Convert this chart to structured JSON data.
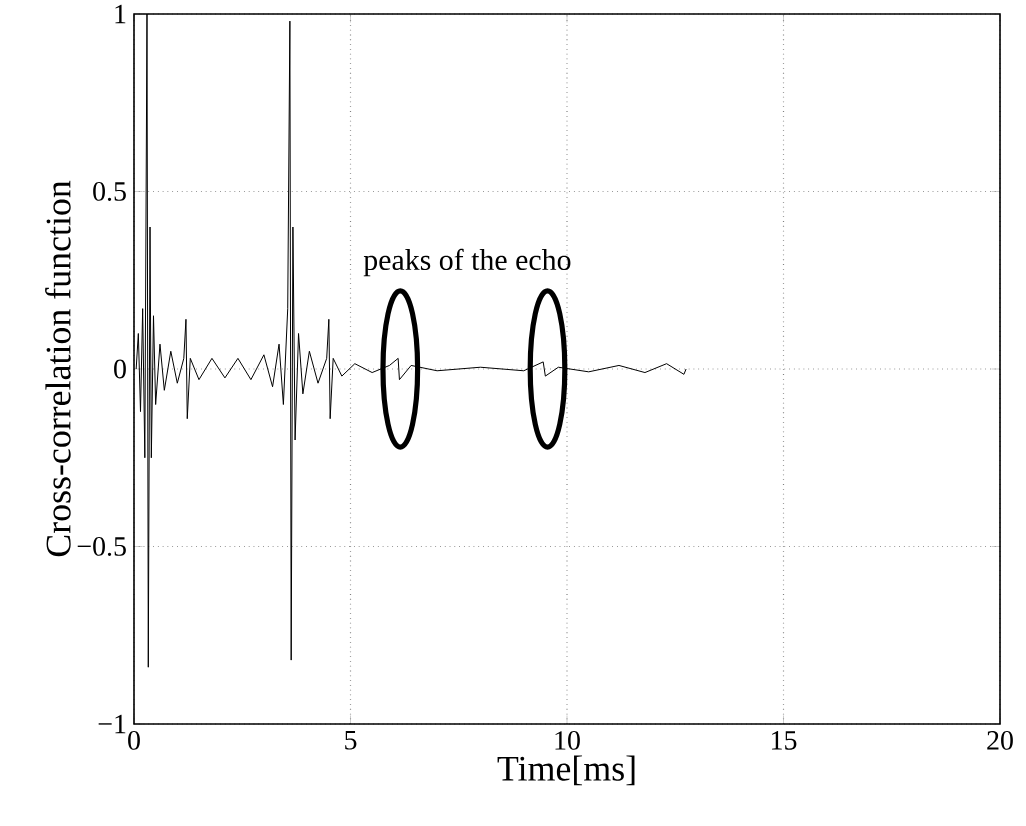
{
  "chart_data": {
    "type": "line",
    "xlabel": "Time[ms]",
    "ylabel": "Cross-correlation function",
    "x": [
      0.05,
      0.1,
      0.15,
      0.2,
      0.25,
      0.3,
      0.33,
      0.37,
      0.4,
      0.45,
      0.5,
      0.6,
      0.7,
      0.85,
      1.0,
      1.15,
      1.2,
      1.23,
      1.3,
      1.5,
      1.8,
      2.1,
      2.4,
      2.7,
      3.0,
      3.2,
      3.35,
      3.45,
      3.55,
      3.6,
      3.63,
      3.67,
      3.72,
      3.8,
      3.9,
      4.05,
      4.25,
      4.45,
      4.5,
      4.53,
      4.6,
      4.8,
      5.1,
      5.5,
      5.9,
      6.1,
      6.13,
      6.4,
      7.0,
      8.0,
      9.0,
      9.45,
      9.5,
      9.8,
      10.5,
      11.2,
      11.8,
      12.3,
      12.7,
      12.75
    ],
    "series": [
      {
        "color": "#000000",
        "values": [
          0,
          0.1,
          -0.12,
          0.17,
          -0.25,
          1.0,
          -0.84,
          0.4,
          -0.25,
          0.15,
          -0.1,
          0.07,
          -0.06,
          0.05,
          -0.04,
          0.03,
          0.14,
          -0.14,
          0.03,
          -0.03,
          0.03,
          -0.025,
          0.03,
          -0.03,
          0.04,
          -0.05,
          0.07,
          -0.1,
          0.17,
          0.98,
          -0.82,
          0.4,
          -0.2,
          0.1,
          -0.07,
          0.05,
          -0.04,
          0.03,
          0.14,
          -0.14,
          0.03,
          -0.02,
          0.015,
          -0.01,
          0.01,
          0.03,
          -0.03,
          0.01,
          -0.005,
          0.005,
          -0.005,
          0.02,
          -0.02,
          0.005,
          -0.008,
          0.01,
          -0.01,
          0.015,
          -0.015,
          0
        ]
      }
    ],
    "xlim": [
      0,
      20
    ],
    "ylim": [
      -1,
      1
    ],
    "xticks": [
      0,
      5,
      10,
      15,
      20
    ],
    "yticks": [
      {
        "value": -1,
        "label": "−1"
      },
      {
        "value": -0.5,
        "label": "−0.5"
      },
      0,
      0.5,
      1
    ],
    "grid": true,
    "marker": "none",
    "line_style": "solid",
    "annotations": [
      "peaks of the echo"
    ]
  }
}
